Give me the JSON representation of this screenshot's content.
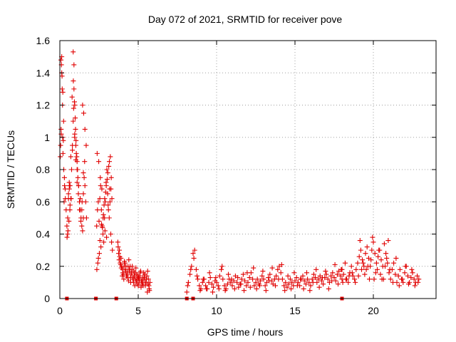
{
  "chart_data": {
    "type": "scatter",
    "title": "Day 072 of 2021, SRMTID for receiver pove",
    "xlabel": "GPS time / hours",
    "ylabel": "SRMTID / TECUs",
    "xlim": [
      0,
      24
    ],
    "ylim": [
      0,
      1.6
    ],
    "xticks": [
      0,
      5,
      10,
      15,
      20
    ],
    "yticks": [
      0,
      0.2,
      0.4,
      0.6,
      0.8,
      1,
      1.2,
      1.4,
      1.6
    ],
    "ytick_labels": [
      "0",
      "0.2",
      "0.4",
      "0.6",
      "0.8",
      "1",
      "1.2",
      "1.4",
      "1.6"
    ],
    "grid": true,
    "marker": "plus",
    "color": "#e00000",
    "gap_markers": {
      "marker": "square",
      "y": 0,
      "x": [
        0.45,
        2.3,
        3.6,
        8.1,
        8.5,
        18.0
      ]
    },
    "series": [
      {
        "x": [
          0.05,
          0.08,
          0.1,
          0.12,
          0.15,
          0.18,
          0.2,
          0.25,
          0.3,
          0.35,
          0.4,
          0.45,
          0.5,
          0.55,
          0.6,
          0.65,
          0.7,
          0.75,
          0.8,
          0.85,
          0.9,
          0.95,
          1.0,
          1.05,
          1.1,
          1.15,
          1.2,
          1.25,
          1.3,
          1.35,
          1.4,
          1.45,
          1.5,
          1.55,
          1.6,
          1.65,
          1.7,
          0.07,
          0.12,
          0.17,
          0.22,
          0.27,
          0.6,
          0.65,
          0.72,
          0.8,
          0.88,
          0.95,
          1.02,
          1.1,
          1.18,
          1.26,
          1.34,
          1.42,
          1.5,
          1.58,
          0.5,
          0.55,
          0.62,
          0.7,
          0.78,
          0.86,
          0.94,
          1.02,
          1.1,
          1.2,
          1.3,
          1.4,
          1.5,
          0.03,
          0.09,
          0.14,
          0.19,
          0.24,
          0.29,
          0.34,
          0.85,
          0.9,
          0.93,
          0.98,
          1.03,
          1.08,
          1.13,
          1.45,
          1.52,
          1.6,
          1.68,
          0.46,
          0.52,
          0.58,
          0.64
        ],
        "y": [
          0.95,
          1.05,
          1.45,
          1.4,
          1.3,
          1.0,
          0.9,
          0.8,
          0.7,
          0.62,
          0.55,
          0.45,
          0.4,
          0.65,
          0.72,
          0.7,
          0.62,
          0.8,
          0.95,
          1.1,
          1.3,
          1.2,
          1.05,
          0.9,
          0.85,
          0.75,
          0.7,
          0.6,
          0.55,
          0.5,
          0.45,
          0.42,
          0.65,
          0.75,
          0.7,
          0.6,
          0.5,
          1.48,
          1.5,
          1.2,
          0.98,
          0.6,
          0.68,
          0.58,
          0.62,
          0.92,
          1.18,
          1.02,
          0.86,
          0.72,
          0.65,
          0.55,
          0.48,
          0.6,
          0.78,
          0.85,
          0.5,
          0.62,
          0.7,
          0.88,
          1.25,
          1.35,
          1.0,
          0.95,
          0.8,
          0.7,
          0.62,
          0.55,
          0.5,
          0.88,
          1.02,
          1.38,
          1.28,
          1.1,
          0.75,
          0.68,
          1.53,
          1.45,
          1.22,
          1.12,
          0.98,
          0.88,
          0.8,
          1.2,
          1.15,
          1.05,
          0.95,
          0.38,
          0.42,
          0.48,
          0.55
        ]
      },
      {
        "x": [
          2.35,
          2.4,
          2.45,
          2.5,
          2.55,
          2.6,
          2.65,
          2.7,
          2.75,
          2.8,
          2.85,
          2.9,
          2.95,
          3.0,
          3.05,
          3.1,
          3.15,
          3.2,
          3.25,
          3.3,
          3.35,
          2.38,
          2.48,
          2.58,
          2.68,
          2.78,
          2.88,
          2.98,
          3.08,
          3.18,
          3.28,
          2.42,
          2.52,
          2.62,
          2.72,
          2.82,
          2.92,
          3.02,
          3.12,
          3.22,
          3.32,
          2.36,
          2.46,
          2.56,
          2.66,
          2.76,
          2.86,
          2.96,
          3.06,
          3.16,
          3.26
        ],
        "y": [
          0.45,
          0.55,
          0.6,
          0.48,
          0.62,
          0.7,
          0.55,
          0.45,
          0.4,
          0.35,
          0.5,
          0.6,
          0.72,
          0.8,
          0.65,
          0.55,
          0.5,
          0.6,
          0.4,
          0.35,
          0.3,
          0.9,
          0.85,
          0.75,
          0.68,
          0.52,
          0.42,
          0.38,
          0.58,
          0.68,
          0.75,
          0.22,
          0.28,
          0.32,
          0.44,
          0.58,
          0.66,
          0.74,
          0.82,
          0.88,
          0.62,
          0.18,
          0.25,
          0.36,
          0.46,
          0.5,
          0.62,
          0.7,
          0.78,
          0.85,
          0.68
        ]
      },
      {
        "x": [
          3.7,
          3.75,
          3.8,
          3.85,
          3.9,
          3.95,
          4.0,
          4.05,
          4.1,
          4.15,
          4.2,
          4.25,
          4.3,
          4.35,
          4.4,
          4.45,
          4.5,
          4.55,
          4.6,
          4.65,
          4.7,
          4.75,
          4.8,
          4.85,
          4.9,
          4.95,
          5.0,
          5.05,
          5.1,
          5.15,
          5.2,
          5.25,
          5.3,
          5.35,
          5.4,
          5.45,
          5.5,
          5.55,
          5.6,
          5.65,
          5.7,
          5.75,
          3.72,
          3.82,
          3.92,
          4.02,
          4.12,
          4.22,
          4.32,
          4.42,
          4.52,
          4.62,
          4.72,
          4.82,
          4.92,
          5.02,
          5.12,
          5.22,
          5.32,
          5.42,
          5.52,
          5.62,
          5.72,
          3.78,
          3.88,
          3.98,
          4.08,
          4.18,
          4.28,
          4.38,
          4.48,
          4.58,
          4.68,
          4.78,
          4.88,
          4.98,
          5.08,
          5.18,
          5.28,
          5.38,
          5.48,
          5.58,
          5.68
        ],
        "y": [
          0.35,
          0.28,
          0.3,
          0.22,
          0.25,
          0.2,
          0.18,
          0.15,
          0.2,
          0.22,
          0.18,
          0.14,
          0.16,
          0.2,
          0.24,
          0.17,
          0.13,
          0.15,
          0.18,
          0.12,
          0.1,
          0.14,
          0.16,
          0.19,
          0.15,
          0.12,
          0.08,
          0.1,
          0.14,
          0.17,
          0.11,
          0.09,
          0.13,
          0.16,
          0.12,
          0.08,
          0.1,
          0.14,
          0.17,
          0.12,
          0.06,
          0.1,
          0.32,
          0.26,
          0.19,
          0.16,
          0.23,
          0.2,
          0.13,
          0.18,
          0.1,
          0.2,
          0.17,
          0.12,
          0.09,
          0.13,
          0.16,
          0.11,
          0.08,
          0.15,
          0.12,
          0.09,
          0.05,
          0.24,
          0.21,
          0.14,
          0.12,
          0.17,
          0.15,
          0.11,
          0.2,
          0.16,
          0.13,
          0.08,
          0.11,
          0.14,
          0.12,
          0.07,
          0.1,
          0.13,
          0.1,
          0.04,
          0.08
        ]
      },
      {
        "x": [
          8.1,
          8.2,
          8.3,
          8.4,
          8.5,
          8.6,
          8.7,
          8.8,
          8.9,
          9.0,
          9.1,
          9.2,
          9.3,
          9.4,
          9.5,
          9.6,
          9.7,
          9.8,
          9.9,
          10.0,
          10.1,
          10.2,
          10.3,
          10.4,
          10.5,
          10.6,
          10.7,
          10.8,
          10.9,
          11.0,
          11.1,
          11.2,
          11.3,
          11.4,
          11.5,
          11.6,
          11.7,
          11.8,
          11.9,
          12.0,
          12.1,
          12.2,
          12.3,
          12.4,
          12.5,
          12.6,
          12.7,
          12.8,
          12.9,
          13.0,
          13.1,
          13.2,
          13.3,
          13.4,
          13.5,
          13.6,
          13.7,
          13.8,
          13.9,
          14.0,
          14.1,
          14.2,
          14.3,
          14.4,
          14.5,
          14.6,
          14.7,
          14.8,
          14.9,
          15.0,
          15.1,
          15.2,
          15.3,
          15.4,
          15.5,
          15.6,
          15.7,
          15.8,
          15.9,
          16.0,
          16.1,
          16.2,
          16.3,
          16.4,
          16.5,
          16.6,
          16.7,
          16.8,
          16.9,
          17.0,
          17.1,
          17.2,
          17.3,
          17.4,
          17.5,
          17.6,
          17.7,
          17.8,
          17.9,
          18.0
        ],
        "y": [
          0.04,
          0.1,
          0.15,
          0.2,
          0.28,
          0.3,
          0.18,
          0.12,
          0.08,
          0.06,
          0.1,
          0.12,
          0.08,
          0.06,
          0.1,
          0.13,
          0.09,
          0.07,
          0.11,
          0.1,
          0.08,
          0.14,
          0.18,
          0.12,
          0.08,
          0.06,
          0.09,
          0.12,
          0.1,
          0.08,
          0.11,
          0.14,
          0.1,
          0.07,
          0.09,
          0.12,
          0.15,
          0.11,
          0.08,
          0.1,
          0.13,
          0.16,
          0.12,
          0.08,
          0.1,
          0.12,
          0.09,
          0.11,
          0.14,
          0.12,
          0.08,
          0.1,
          0.13,
          0.15,
          0.11,
          0.09,
          0.12,
          0.14,
          0.18,
          0.2,
          0.16,
          0.12,
          0.08,
          0.1,
          0.07,
          0.09,
          0.12,
          0.1,
          0.08,
          0.11,
          0.13,
          0.1,
          0.08,
          0.12,
          0.14,
          0.11,
          0.09,
          0.12,
          0.1,
          0.08,
          0.12,
          0.15,
          0.13,
          0.1,
          0.12,
          0.14,
          0.11,
          0.09,
          0.13,
          0.15,
          0.12,
          0.1,
          0.14,
          0.16,
          0.13,
          0.11,
          0.15,
          0.17,
          0.14,
          0.12
        ]
      },
      {
        "x": [
          8.15,
          8.35,
          8.55,
          8.75,
          8.95,
          9.15,
          9.35,
          9.55,
          9.75,
          9.95,
          10.15,
          10.35,
          10.55,
          10.75,
          10.95,
          11.15,
          11.35,
          11.55,
          11.75,
          11.95,
          12.15,
          12.35,
          12.55,
          12.75,
          12.95,
          13.15,
          13.35,
          13.55,
          13.75,
          13.95,
          14.15,
          14.35,
          14.55,
          14.75,
          14.95,
          15.15,
          15.35,
          15.55,
          15.75,
          15.95,
          16.15,
          16.35,
          16.55,
          16.75,
          16.95,
          17.15,
          17.35,
          17.55,
          17.75,
          17.95
        ],
        "y": [
          0.08,
          0.18,
          0.25,
          0.14,
          0.05,
          0.12,
          0.06,
          0.16,
          0.04,
          0.13,
          0.06,
          0.2,
          0.05,
          0.15,
          0.12,
          0.06,
          0.13,
          0.09,
          0.05,
          0.16,
          0.07,
          0.19,
          0.06,
          0.08,
          0.17,
          0.05,
          0.11,
          0.19,
          0.08,
          0.12,
          0.21,
          0.05,
          0.14,
          0.06,
          0.16,
          0.08,
          0.12,
          0.06,
          0.16,
          0.05,
          0.1,
          0.18,
          0.07,
          0.13,
          0.17,
          0.06,
          0.11,
          0.21,
          0.09,
          0.18
        ]
      },
      {
        "x": [
          18.0,
          18.1,
          18.2,
          18.3,
          18.4,
          18.5,
          18.6,
          18.7,
          18.8,
          18.9,
          19.0,
          19.1,
          19.2,
          19.3,
          19.4,
          19.5,
          19.6,
          19.7,
          19.8,
          19.9,
          20.0,
          20.1,
          20.2,
          20.3,
          20.4,
          20.5,
          20.6,
          20.7,
          20.8,
          20.9,
          21.0,
          21.1,
          21.2,
          21.3,
          21.4,
          21.5,
          21.6,
          21.7,
          21.8,
          21.9,
          22.0,
          22.1,
          22.2,
          22.3,
          22.4,
          22.5,
          22.6,
          22.7,
          22.8,
          22.9,
          18.05,
          18.25,
          18.45,
          18.65,
          18.85,
          19.05,
          19.25,
          19.45,
          19.65,
          19.85,
          20.05,
          20.25,
          20.45,
          20.65,
          20.85,
          21.05,
          21.25,
          21.45,
          21.65,
          21.85,
          22.05,
          22.25,
          22.45,
          22.65,
          22.85,
          19.15,
          19.35,
          19.55,
          19.75,
          19.95,
          20.15,
          20.35,
          20.55,
          20.75,
          20.95
        ],
        "y": [
          0.18,
          0.15,
          0.22,
          0.12,
          0.1,
          0.16,
          0.2,
          0.14,
          0.12,
          0.18,
          0.22,
          0.26,
          0.3,
          0.24,
          0.2,
          0.28,
          0.32,
          0.25,
          0.2,
          0.3,
          0.35,
          0.28,
          0.22,
          0.26,
          0.3,
          0.24,
          0.2,
          0.34,
          0.28,
          0.22,
          0.16,
          0.12,
          0.18,
          0.22,
          0.15,
          0.1,
          0.14,
          0.18,
          0.12,
          0.1,
          0.16,
          0.2,
          0.14,
          0.1,
          0.13,
          0.16,
          0.12,
          0.1,
          0.14,
          0.12,
          0.1,
          0.12,
          0.14,
          0.16,
          0.1,
          0.14,
          0.18,
          0.15,
          0.2,
          0.24,
          0.12,
          0.18,
          0.15,
          0.12,
          0.25,
          0.18,
          0.1,
          0.25,
          0.08,
          0.12,
          0.2,
          0.09,
          0.18,
          0.08,
          0.1,
          0.36,
          0.22,
          0.18,
          0.12,
          0.38,
          0.16,
          0.3,
          0.12,
          0.2,
          0.36
        ]
      }
    ]
  }
}
